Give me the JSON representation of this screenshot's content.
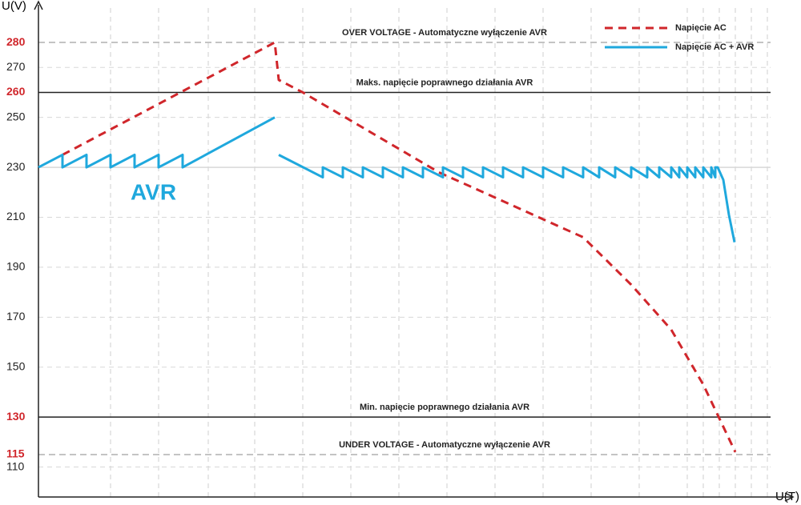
{
  "chart_data": {
    "type": "line",
    "y_label": "U(V)",
    "x_label": "U(T)",
    "ylim": [
      98,
      297
    ],
    "yticks": [
      280,
      270,
      260,
      250,
      230,
      210,
      190,
      170,
      150,
      130,
      115,
      110
    ],
    "xlim": [
      0,
      942
    ],
    "xticks": [
      90,
      150,
      212,
      270,
      330,
      390,
      450,
      510,
      570,
      630,
      690,
      750,
      810,
      830,
      850,
      870,
      890,
      910
    ],
    "grid": true,
    "reference_lines": [
      {
        "value": 280,
        "label": "OVER VOLTAGE - Automatyczne wyłączenie AVR",
        "style": "dashed",
        "color": "#888888"
      },
      {
        "value": 260,
        "label": "Maks. napięcie poprawnego działania AVR",
        "style": "solid",
        "color": "#222222"
      },
      {
        "value": 130,
        "label": "Min. napięcie poprawnego działania AVR",
        "style": "solid",
        "color": "#222222"
      },
      {
        "value": 115,
        "label": "UNDER VOLTAGE - Automatyczne wyłączenie AVR",
        "style": "dashed",
        "color": "#888888"
      }
    ],
    "highlight_color": "#d0262b",
    "annotation": "AVR",
    "legend": "top-right",
    "series": [
      {
        "name": "Napięcie AC",
        "color": "#d0262b",
        "style": "dashed",
        "x": [
          30,
          295,
          300,
          330,
          500,
          680,
          740,
          790,
          830,
          870
        ],
        "values": [
          235,
          280,
          265,
          260,
          228,
          202,
          183,
          165,
          143,
          116
        ]
      },
      {
        "name": "Napięcie AC  + AVR",
        "color": "#1fa8dd",
        "style": "solid",
        "x": [
          0,
          30,
          30,
          60,
          60,
          90,
          90,
          120,
          120,
          150,
          150,
          180,
          180,
          295,
          297,
          300,
          355,
          355,
          380,
          380,
          405,
          405,
          430,
          430,
          455,
          455,
          480,
          480,
          505,
          505,
          530,
          530,
          555,
          555,
          580,
          580,
          605,
          605,
          630,
          630,
          655,
          655,
          680,
          680,
          700,
          700,
          720,
          720,
          740,
          740,
          760,
          760,
          775,
          775,
          790,
          790,
          800,
          800,
          810,
          810,
          820,
          820,
          830,
          830,
          840,
          840,
          845,
          845,
          848,
          855,
          862,
          869
        ],
        "values": [
          230,
          235,
          230,
          235,
          230,
          235,
          230,
          235,
          230,
          235,
          230,
          235,
          230,
          250,
          null,
          235,
          226,
          230,
          226,
          230,
          226,
          230,
          226,
          230,
          226,
          230,
          226,
          230,
          226,
          230,
          226,
          230,
          226,
          230,
          226,
          230,
          226,
          230,
          226,
          230,
          226,
          230,
          226,
          230,
          226,
          230,
          226,
          230,
          226,
          230,
          226,
          230,
          226,
          230,
          226,
          230,
          226,
          230,
          226,
          230,
          226,
          230,
          226,
          230,
          226,
          230,
          226,
          230,
          230,
          225,
          211,
          200
        ]
      }
    ]
  }
}
